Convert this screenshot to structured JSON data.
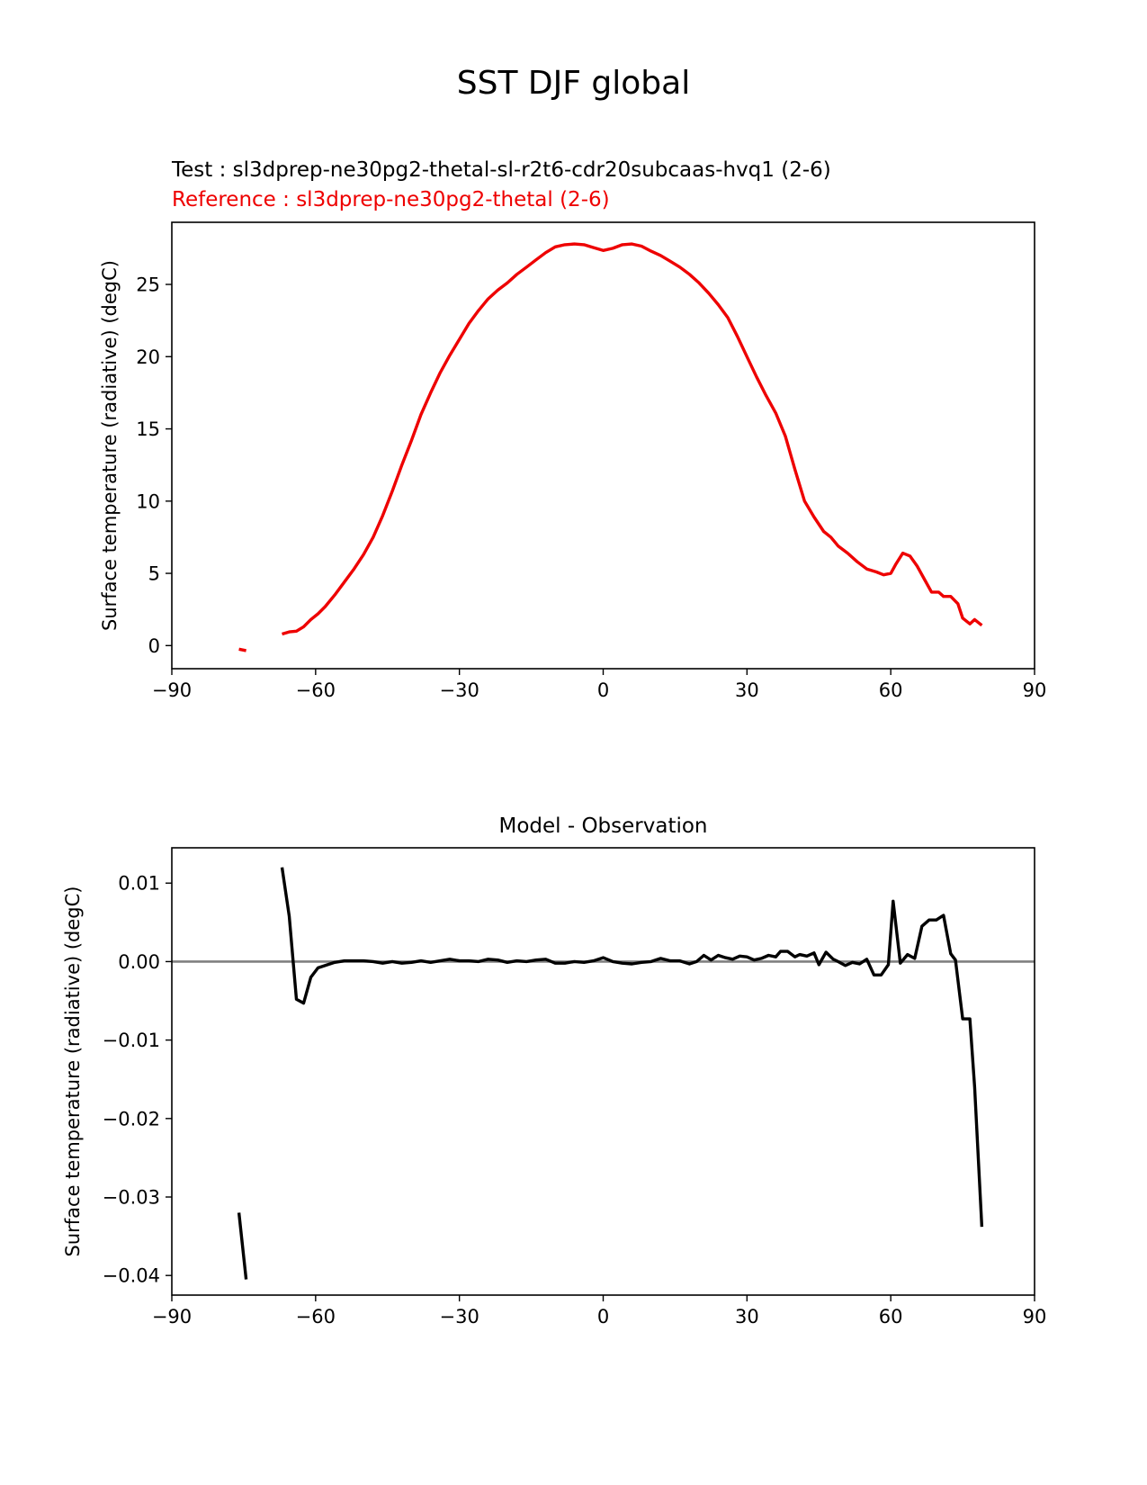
{
  "figure": {
    "suptitle": "SST DJF global",
    "test_label": "Test : sl3dprep-ne30pg2-thetal-sl-r2t6-cdr20subcaas-hvq1 (2-6)",
    "reference_label": "Reference : sl3dprep-ne30pg2-thetal (2-6)"
  },
  "colors": {
    "test": "#000000",
    "reference": "#ee0000",
    "diff": "#000000",
    "zero_line": "#808080"
  },
  "chart_data": [
    {
      "type": "line",
      "title": "",
      "xlabel": "",
      "ylabel": "Surface temperature (radiative) (degC)",
      "xlim": [
        -90,
        90
      ],
      "ylim": [
        -1.6,
        29.3
      ],
      "xticks": [
        -90,
        -60,
        -30,
        0,
        30,
        60,
        90
      ],
      "xtick_labels": [
        "−90",
        "−60",
        "−30",
        "0",
        "30",
        "60",
        "90"
      ],
      "yticks": [
        0,
        5,
        10,
        15,
        20,
        25
      ],
      "ytick_labels": [
        "0",
        "5",
        "10",
        "15",
        "20",
        "25"
      ],
      "grid": false,
      "series": [
        {
          "name": "Reference",
          "color": "#ee0000",
          "segments": [
            [
              [
                -76,
                -0.25
              ],
              [
                -74.5,
                -0.35
              ]
            ],
            [
              [
                -67,
                0.8
              ],
              [
                -65.5,
                0.95
              ],
              [
                -64,
                1.0
              ],
              [
                -62.5,
                1.3
              ],
              [
                -61,
                1.8
              ],
              [
                -59.5,
                2.2
              ],
              [
                -58,
                2.7
              ],
              [
                -56,
                3.5
              ],
              [
                -54,
                4.4
              ],
              [
                -52,
                5.3
              ],
              [
                -50,
                6.3
              ],
              [
                -48,
                7.5
              ],
              [
                -46,
                9.0
              ],
              [
                -44,
                10.7
              ],
              [
                -42,
                12.5
              ],
              [
                -40,
                14.2
              ],
              [
                -38,
                16.0
              ],
              [
                -36,
                17.5
              ],
              [
                -34,
                18.9
              ],
              [
                -32,
                20.1
              ],
              [
                -30,
                21.2
              ],
              [
                -28,
                22.3
              ],
              [
                -26,
                23.2
              ],
              [
                -24,
                24.0
              ],
              [
                -22,
                24.6
              ],
              [
                -20,
                25.1
              ],
              [
                -18,
                25.7
              ],
              [
                -16,
                26.2
              ],
              [
                -14,
                26.7
              ],
              [
                -12,
                27.2
              ],
              [
                -10,
                27.6
              ],
              [
                -8,
                27.75
              ],
              [
                -6,
                27.8
              ],
              [
                -4,
                27.75
              ],
              [
                -2,
                27.55
              ],
              [
                0,
                27.35
              ],
              [
                2,
                27.5
              ],
              [
                4,
                27.75
              ],
              [
                6,
                27.8
              ],
              [
                8,
                27.65
              ],
              [
                10,
                27.3
              ],
              [
                12,
                27.0
              ],
              [
                14,
                26.6
              ],
              [
                16,
                26.2
              ],
              [
                18,
                25.7
              ],
              [
                20,
                25.1
              ],
              [
                22,
                24.4
              ],
              [
                24,
                23.6
              ],
              [
                26,
                22.7
              ],
              [
                28,
                21.4
              ],
              [
                30,
                20.0
              ],
              [
                32,
                18.6
              ],
              [
                34,
                17.3
              ],
              [
                36,
                16.1
              ],
              [
                38,
                14.5
              ],
              [
                40,
                12.2
              ],
              [
                42,
                10.0
              ],
              [
                44,
                8.9
              ],
              [
                46,
                7.9
              ],
              [
                47.5,
                7.5
              ],
              [
                49,
                6.9
              ],
              [
                51,
                6.4
              ],
              [
                53,
                5.8
              ],
              [
                55,
                5.3
              ],
              [
                57,
                5.1
              ],
              [
                58.5,
                4.9
              ],
              [
                60,
                5.0
              ],
              [
                61,
                5.6
              ],
              [
                62.5,
                6.4
              ],
              [
                64,
                6.2
              ],
              [
                65.5,
                5.5
              ],
              [
                67,
                4.6
              ],
              [
                68.5,
                3.7
              ],
              [
                70,
                3.7
              ],
              [
                71,
                3.4
              ],
              [
                72.5,
                3.4
              ],
              [
                74,
                2.9
              ],
              [
                75,
                1.9
              ],
              [
                76.5,
                1.5
              ],
              [
                77.5,
                1.8
              ],
              [
                79,
                1.4
              ]
            ]
          ]
        }
      ]
    },
    {
      "type": "line",
      "title": "Model - Observation",
      "xlabel": "",
      "ylabel": "Surface temperature (radiative) (degC)",
      "xlim": [
        -90,
        90
      ],
      "ylim": [
        -0.0425,
        0.0145
      ],
      "xticks": [
        -90,
        -60,
        -30,
        0,
        30,
        60,
        90
      ],
      "xtick_labels": [
        "−90",
        "−60",
        "−30",
        "0",
        "30",
        "60",
        "90"
      ],
      "yticks": [
        0.01,
        0.0,
        -0.01,
        -0.02,
        -0.03,
        -0.04
      ],
      "ytick_labels": [
        "0.01",
        "0.00",
        "−0.01",
        "−0.02",
        "−0.03",
        "−0.04"
      ],
      "zero_line": 0,
      "grid": false,
      "series": [
        {
          "name": "Model - Observation",
          "color": "#000000",
          "segments": [
            [
              [
                -76,
                -0.032
              ],
              [
                -74.5,
                -0.0405
              ]
            ],
            [
              [
                -67,
                0.012
              ],
              [
                -65.5,
                0.0058
              ],
              [
                -64,
                -0.0048
              ],
              [
                -62.5,
                -0.0053
              ],
              [
                -61,
                -0.002
              ],
              [
                -59.5,
                -0.0008
              ],
              [
                -58,
                -0.0005
              ],
              [
                -56,
                -0.0001
              ],
              [
                -54,
                0.0001
              ],
              [
                -52,
                0.0001
              ],
              [
                -50,
                0.0001
              ],
              [
                -48,
                0.0
              ],
              [
                -46,
                -0.0002
              ],
              [
                -44,
                0.0
              ],
              [
                -42,
                -0.0002
              ],
              [
                -40,
                -0.0001
              ],
              [
                -38,
                0.0001
              ],
              [
                -36,
                -0.0001
              ],
              [
                -34,
                0.0001
              ],
              [
                -32,
                0.0003
              ],
              [
                -30,
                0.0001
              ],
              [
                -28,
                0.0001
              ],
              [
                -26,
                0.0
              ],
              [
                -24,
                0.0003
              ],
              [
                -22,
                0.0002
              ],
              [
                -20,
                -0.0001
              ],
              [
                -18,
                0.0001
              ],
              [
                -16,
                0.0
              ],
              [
                -14,
                0.0002
              ],
              [
                -12,
                0.0003
              ],
              [
                -10,
                -0.0002
              ],
              [
                -8,
                -0.0002
              ],
              [
                -6,
                0.0
              ],
              [
                -4,
                -0.0001
              ],
              [
                -2,
                0.0001
              ],
              [
                0,
                0.0005
              ],
              [
                2,
                0.0
              ],
              [
                4,
                -0.0002
              ],
              [
                6,
                -0.0003
              ],
              [
                8,
                -0.0001
              ],
              [
                10,
                0.0
              ],
              [
                12,
                0.0004
              ],
              [
                14,
                0.0001
              ],
              [
                16,
                0.0001
              ],
              [
                18,
                -0.0003
              ],
              [
                19.5,
                0.0
              ],
              [
                21,
                0.0008
              ],
              [
                22.5,
                0.0002
              ],
              [
                24,
                0.0008
              ],
              [
                25.5,
                0.0005
              ],
              [
                27,
                0.0003
              ],
              [
                28.5,
                0.0007
              ],
              [
                30,
                0.0006
              ],
              [
                31.5,
                0.0002
              ],
              [
                33,
                0.0004
              ],
              [
                34.5,
                0.0008
              ],
              [
                36,
                0.0006
              ],
              [
                37,
                0.0013
              ],
              [
                38.5,
                0.0013
              ],
              [
                40,
                0.0006
              ],
              [
                41,
                0.0009
              ],
              [
                42.5,
                0.0007
              ],
              [
                44,
                0.0011
              ],
              [
                45,
                -0.0004
              ],
              [
                46.5,
                0.0012
              ],
              [
                48,
                0.0003
              ],
              [
                49,
                0.0
              ],
              [
                50.5,
                -0.0005
              ],
              [
                52,
                -0.0001
              ],
              [
                53.5,
                -0.0003
              ],
              [
                55,
                0.0003
              ],
              [
                56.5,
                -0.0017
              ],
              [
                58,
                -0.0017
              ],
              [
                59.5,
                -0.0004
              ],
              [
                60.5,
                0.0077
              ],
              [
                62,
                -0.0002
              ],
              [
                63.5,
                0.0009
              ],
              [
                65,
                0.0004
              ],
              [
                66.5,
                0.0045
              ],
              [
                68,
                0.0053
              ],
              [
                69.5,
                0.0053
              ],
              [
                71,
                0.0059
              ],
              [
                72.5,
                0.001
              ],
              [
                73.5,
                0.0002
              ],
              [
                75,
                -0.0073
              ],
              [
                76.5,
                -0.0073
              ],
              [
                77.5,
                -0.016
              ],
              [
                79,
                -0.0338
              ]
            ]
          ]
        }
      ]
    }
  ]
}
